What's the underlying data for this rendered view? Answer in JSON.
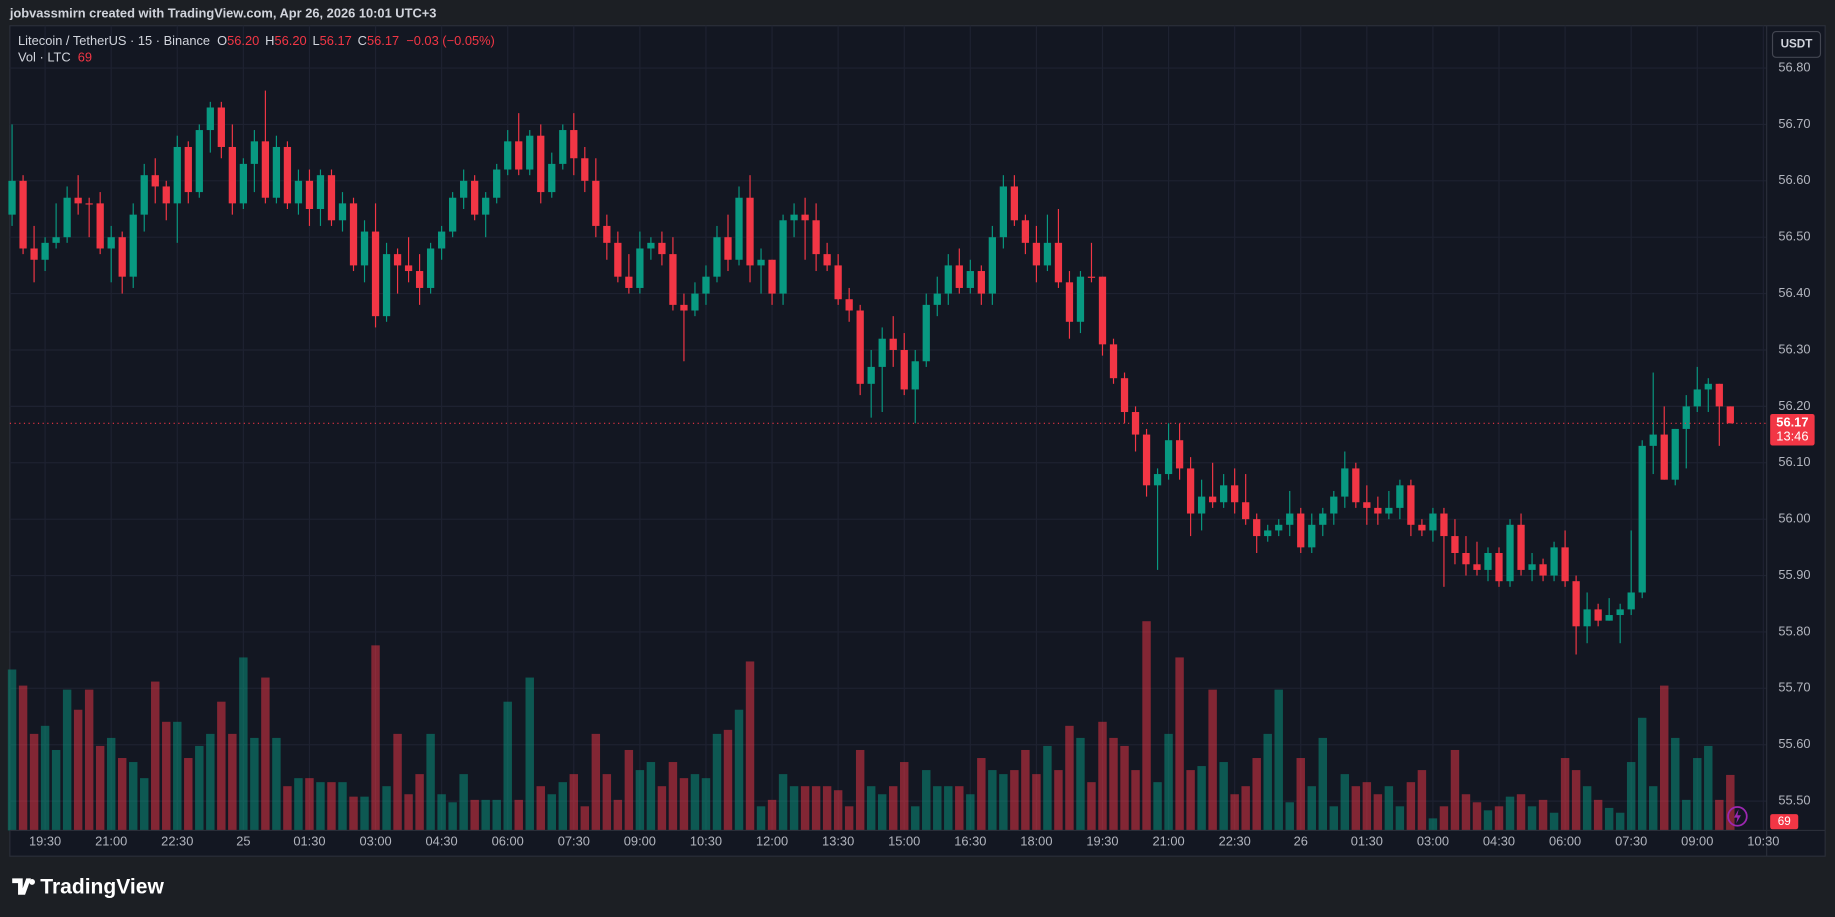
{
  "header": {
    "text": "jobvassmirn created with TradingView.com, Apr 26, 2026 10:01 UTC+3"
  },
  "footer": {
    "brand": "TradingView"
  },
  "chart_data": {
    "type": "candlestick",
    "legend": {
      "symbol": "Litecoin / TetherUS · 15 · Binance",
      "change": "−0.03 (−0.05%)",
      "volume": "Vol · LTC"
    },
    "legend_keys": [
      "O",
      "H",
      "L",
      "C"
    ],
    "legend_labels": [
      "56.20",
      "56.20",
      "56.17",
      "56.17"
    ],
    "countdown": "13:46",
    "currency": "USDT",
    "up_color": "#089981",
    "down_color": "#f23645",
    "grid": true,
    "xlim": [
      -0.2,
      159.3
    ],
    "ylim": [
      55.448,
      56.875
    ],
    "y2lim": [
      0,
      1000
    ],
    "yticks": [
      {
        "value": 55.5,
        "label": "55.50"
      },
      {
        "value": 55.6,
        "label": "55.60"
      },
      {
        "value": 55.7,
        "label": "55.70"
      },
      {
        "value": 55.8,
        "label": "55.80"
      },
      {
        "value": 55.9,
        "label": "55.90"
      },
      {
        "value": 56.0,
        "label": "56.00"
      },
      {
        "value": 56.1,
        "label": "56.10"
      },
      {
        "value": 56.2,
        "label": "56.20"
      },
      {
        "value": 56.3,
        "label": "56.30"
      },
      {
        "value": 56.4,
        "label": "56.40"
      },
      {
        "value": 56.5,
        "label": "56.50"
      },
      {
        "value": 56.6,
        "label": "56.60"
      },
      {
        "value": 56.7,
        "label": "56.70"
      },
      {
        "value": 56.8,
        "label": "56.80"
      }
    ],
    "xticks": [
      {
        "value": 3,
        "label": "19:30"
      },
      {
        "value": 9,
        "label": "21:00"
      },
      {
        "value": 15,
        "label": "22:30"
      },
      {
        "value": 21,
        "label": "25"
      },
      {
        "value": 27,
        "label": "01:30"
      },
      {
        "value": 33,
        "label": "03:00"
      },
      {
        "value": 39,
        "label": "04:30"
      },
      {
        "value": 45,
        "label": "06:00"
      },
      {
        "value": 51,
        "label": "07:30"
      },
      {
        "value": 57,
        "label": "09:00"
      },
      {
        "value": 63,
        "label": "10:30"
      },
      {
        "value": 69,
        "label": "12:00"
      },
      {
        "value": 75,
        "label": "13:30"
      },
      {
        "value": 81,
        "label": "15:00"
      },
      {
        "value": 87,
        "label": "16:30"
      },
      {
        "value": 93,
        "label": "18:00"
      },
      {
        "value": 99,
        "label": "19:30"
      },
      {
        "value": 105,
        "label": "21:00"
      },
      {
        "value": 111,
        "label": "22:30"
      },
      {
        "value": 117,
        "label": "26"
      },
      {
        "value": 123,
        "label": "01:30"
      },
      {
        "value": 129,
        "label": "03:00"
      },
      {
        "value": 135,
        "label": "04:30"
      },
      {
        "value": 141,
        "label": "06:00"
      },
      {
        "value": 147,
        "label": "07:30"
      },
      {
        "value": 153,
        "label": "09:00"
      },
      {
        "value": 159,
        "label": "10:30"
      }
    ],
    "candles": [
      [
        56.54,
        56.7,
        56.52,
        56.6,
        200
      ],
      [
        56.6,
        56.61,
        56.47,
        56.48,
        180
      ],
      [
        56.48,
        56.52,
        56.42,
        56.46,
        120
      ],
      [
        56.46,
        56.5,
        56.44,
        56.49,
        130
      ],
      [
        56.49,
        56.56,
        56.48,
        56.5,
        100
      ],
      [
        56.5,
        56.59,
        56.49,
        56.57,
        175
      ],
      [
        56.57,
        56.61,
        56.54,
        56.56,
        150
      ],
      [
        56.56,
        56.57,
        56.5,
        56.56,
        175
      ],
      [
        56.56,
        56.58,
        56.47,
        56.48,
        105
      ],
      [
        56.48,
        56.52,
        56.42,
        56.5,
        115
      ],
      [
        56.5,
        56.51,
        56.4,
        56.43,
        90
      ],
      [
        56.43,
        56.56,
        56.41,
        56.54,
        85
      ],
      [
        56.54,
        56.63,
        56.51,
        56.61,
        65
      ],
      [
        56.61,
        56.64,
        56.56,
        56.59,
        185
      ],
      [
        56.59,
        56.6,
        56.53,
        56.56,
        135
      ],
      [
        56.56,
        56.68,
        56.49,
        56.66,
        135
      ],
      [
        56.66,
        56.67,
        56.56,
        56.58,
        90
      ],
      [
        56.58,
        56.7,
        56.57,
        56.69,
        105
      ],
      [
        56.69,
        56.74,
        56.65,
        56.73,
        120
      ],
      [
        56.73,
        56.74,
        56.64,
        56.66,
        160
      ],
      [
        56.66,
        56.7,
        56.54,
        56.56,
        120
      ],
      [
        56.56,
        56.64,
        56.55,
        56.63,
        215
      ],
      [
        56.63,
        56.69,
        56.58,
        56.67,
        115
      ],
      [
        56.67,
        56.76,
        56.56,
        56.57,
        190
      ],
      [
        56.57,
        56.68,
        56.56,
        56.66,
        115
      ],
      [
        56.66,
        56.67,
        56.55,
        56.56,
        55
      ],
      [
        56.56,
        56.62,
        56.54,
        56.6,
        65
      ],
      [
        56.6,
        56.62,
        56.52,
        56.55,
        65
      ],
      [
        56.55,
        56.62,
        56.52,
        56.61,
        60
      ],
      [
        56.61,
        56.62,
        56.52,
        56.53,
        60
      ],
      [
        56.53,
        56.58,
        56.51,
        56.56,
        60
      ],
      [
        56.56,
        56.57,
        56.44,
        56.45,
        42
      ],
      [
        56.45,
        56.53,
        56.42,
        56.51,
        42
      ],
      [
        56.51,
        56.56,
        56.34,
        56.36,
        230
      ],
      [
        56.36,
        56.49,
        56.35,
        56.47,
        55
      ],
      [
        56.47,
        56.48,
        56.4,
        56.45,
        120
      ],
      [
        56.45,
        56.5,
        56.42,
        56.44,
        45
      ],
      [
        56.44,
        56.47,
        56.38,
        56.41,
        70
      ],
      [
        56.41,
        56.49,
        56.4,
        56.48,
        120
      ],
      [
        56.48,
        56.52,
        56.46,
        56.51,
        45
      ],
      [
        56.51,
        56.58,
        56.5,
        56.57,
        35
      ],
      [
        56.57,
        56.62,
        56.55,
        56.6,
        70
      ],
      [
        56.6,
        56.61,
        56.53,
        56.54,
        38
      ],
      [
        56.54,
        56.58,
        56.5,
        56.57,
        38
      ],
      [
        56.57,
        56.63,
        56.56,
        56.62,
        38
      ],
      [
        56.62,
        56.69,
        56.61,
        56.67,
        160
      ],
      [
        56.67,
        56.72,
        56.61,
        56.62,
        38
      ],
      [
        56.62,
        56.69,
        56.61,
        56.68,
        190
      ],
      [
        56.68,
        56.7,
        56.56,
        56.58,
        55
      ],
      [
        56.58,
        56.65,
        56.57,
        56.63,
        45
      ],
      [
        56.63,
        56.7,
        56.62,
        56.69,
        60
      ],
      [
        56.69,
        56.72,
        56.61,
        56.64,
        70
      ],
      [
        56.64,
        56.66,
        56.58,
        56.6,
        30
      ],
      [
        56.6,
        56.64,
        56.5,
        56.52,
        120
      ],
      [
        56.52,
        56.54,
        56.46,
        56.49,
        70
      ],
      [
        56.49,
        56.51,
        56.42,
        56.43,
        38
      ],
      [
        56.43,
        56.47,
        56.4,
        56.41,
        100
      ],
      [
        56.41,
        56.51,
        56.4,
        56.48,
        75
      ],
      [
        56.48,
        56.5,
        56.46,
        56.49,
        85
      ],
      [
        56.49,
        56.51,
        56.45,
        56.47,
        55
      ],
      [
        56.47,
        56.5,
        56.37,
        56.38,
        85
      ],
      [
        56.38,
        56.4,
        56.28,
        56.37,
        65
      ],
      [
        56.37,
        56.42,
        56.36,
        56.4,
        70
      ],
      [
        56.4,
        56.45,
        56.38,
        56.43,
        65
      ],
      [
        56.43,
        56.52,
        56.42,
        56.5,
        120
      ],
      [
        56.5,
        56.54,
        56.44,
        56.46,
        125
      ],
      [
        56.46,
        56.59,
        56.45,
        56.57,
        150
      ],
      [
        56.57,
        56.61,
        56.42,
        56.45,
        210
      ],
      [
        56.45,
        56.48,
        56.4,
        56.46,
        30
      ],
      [
        56.46,
        56.46,
        56.38,
        56.4,
        38
      ],
      [
        56.4,
        56.54,
        56.38,
        56.53,
        70
      ],
      [
        56.53,
        56.56,
        56.5,
        56.54,
        55
      ],
      [
        56.54,
        56.57,
        56.46,
        56.53,
        55
      ],
      [
        56.53,
        56.56,
        56.44,
        56.47,
        55
      ],
      [
        56.47,
        56.49,
        56.44,
        56.45,
        55
      ],
      [
        56.45,
        56.47,
        56.38,
        56.39,
        50
      ],
      [
        56.39,
        56.41,
        56.35,
        56.37,
        30
      ],
      [
        56.37,
        56.38,
        56.22,
        56.24,
        100
      ],
      [
        56.24,
        56.3,
        56.18,
        56.27,
        55
      ],
      [
        56.27,
        56.34,
        56.19,
        56.32,
        45
      ],
      [
        56.32,
        56.36,
        56.27,
        56.3,
        55
      ],
      [
        56.3,
        56.33,
        56.22,
        56.23,
        85
      ],
      [
        56.23,
        56.3,
        56.17,
        56.28,
        30
      ],
      [
        56.28,
        56.4,
        56.27,
        56.38,
        75
      ],
      [
        56.38,
        56.43,
        56.36,
        56.4,
        55
      ],
      [
        56.4,
        56.47,
        56.38,
        56.45,
        55
      ],
      [
        56.45,
        56.48,
        56.4,
        56.41,
        55
      ],
      [
        56.41,
        56.46,
        56.4,
        56.44,
        45
      ],
      [
        56.44,
        56.45,
        56.38,
        56.4,
        90
      ],
      [
        56.4,
        56.52,
        56.38,
        56.5,
        75
      ],
      [
        56.5,
        56.61,
        56.48,
        56.59,
        70
      ],
      [
        56.59,
        56.61,
        56.52,
        56.53,
        75
      ],
      [
        56.53,
        56.54,
        56.47,
        56.49,
        100
      ],
      [
        56.49,
        56.52,
        56.42,
        56.45,
        70
      ],
      [
        56.45,
        56.54,
        56.44,
        56.49,
        105
      ],
      [
        56.49,
        56.55,
        56.41,
        56.42,
        75
      ],
      [
        56.42,
        56.44,
        56.32,
        56.35,
        130
      ],
      [
        56.35,
        56.44,
        56.33,
        56.43,
        115
      ],
      [
        56.43,
        56.49,
        56.42,
        56.43,
        60
      ],
      [
        56.43,
        56.43,
        56.29,
        56.31,
        135
      ],
      [
        56.31,
        56.32,
        56.24,
        56.25,
        115
      ],
      [
        56.25,
        56.26,
        56.17,
        56.19,
        105
      ],
      [
        56.19,
        56.2,
        56.12,
        56.15,
        75
      ],
      [
        56.15,
        56.16,
        56.04,
        56.06,
        260
      ],
      [
        56.06,
        56.09,
        55.91,
        56.08,
        60
      ],
      [
        56.08,
        56.17,
        56.07,
        56.14,
        120
      ],
      [
        56.14,
        56.17,
        56.07,
        56.09,
        215
      ],
      [
        56.09,
        56.11,
        55.97,
        56.01,
        75
      ],
      [
        56.01,
        56.07,
        55.98,
        56.04,
        80
      ],
      [
        56.04,
        56.1,
        56.02,
        56.03,
        175
      ],
      [
        56.03,
        56.08,
        56.02,
        56.06,
        85
      ],
      [
        56.06,
        56.09,
        56.01,
        56.03,
        45
      ],
      [
        56.03,
        56.08,
        55.99,
        56.0,
        55
      ],
      [
        56.0,
        56.01,
        55.94,
        55.97,
        90
      ],
      [
        55.97,
        55.99,
        55.96,
        55.98,
        120
      ],
      [
        55.98,
        56.0,
        55.97,
        55.99,
        175
      ],
      [
        55.99,
        56.05,
        55.97,
        56.01,
        35
      ],
      [
        56.01,
        56.02,
        55.94,
        55.95,
        90
      ],
      [
        55.95,
        56.01,
        55.94,
        55.99,
        55
      ],
      [
        55.99,
        56.02,
        55.97,
        56.01,
        115
      ],
      [
        56.01,
        56.05,
        55.99,
        56.04,
        30
      ],
      [
        56.04,
        56.12,
        56.02,
        56.09,
        70
      ],
      [
        56.09,
        56.1,
        56.02,
        56.03,
        55
      ],
      [
        56.03,
        56.06,
        55.99,
        56.02,
        60
      ],
      [
        56.02,
        56.04,
        55.99,
        56.01,
        45
      ],
      [
        56.01,
        56.05,
        56.0,
        56.02,
        55
      ],
      [
        56.02,
        56.07,
        56.0,
        56.06,
        30
      ],
      [
        56.06,
        56.07,
        55.97,
        55.99,
        60
      ],
      [
        55.99,
        56.0,
        55.97,
        55.98,
        75
      ],
      [
        55.98,
        56.02,
        55.96,
        56.01,
        15
      ],
      [
        56.01,
        56.02,
        55.88,
        55.97,
        30
      ],
      [
        55.97,
        56.0,
        55.92,
        55.94,
        100
      ],
      [
        55.94,
        55.97,
        55.9,
        55.92,
        45
      ],
      [
        55.92,
        55.96,
        55.9,
        55.91,
        35
      ],
      [
        55.91,
        55.95,
        55.89,
        55.94,
        25
      ],
      [
        55.94,
        55.95,
        55.88,
        55.89,
        30
      ],
      [
        55.89,
        56.0,
        55.88,
        55.99,
        42
      ],
      [
        55.99,
        56.01,
        55.9,
        55.91,
        45
      ],
      [
        55.91,
        55.94,
        55.89,
        55.92,
        30
      ],
      [
        55.92,
        55.93,
        55.89,
        55.9,
        38
      ],
      [
        55.9,
        55.96,
        55.89,
        55.95,
        22
      ],
      [
        55.95,
        55.98,
        55.88,
        55.89,
        90
      ],
      [
        55.89,
        55.9,
        55.76,
        55.81,
        75
      ],
      [
        55.81,
        55.87,
        55.78,
        55.84,
        55
      ],
      [
        55.84,
        55.85,
        55.81,
        55.82,
        38
      ],
      [
        55.82,
        55.86,
        55.82,
        55.83,
        28
      ],
      [
        55.83,
        55.85,
        55.78,
        55.84,
        22
      ],
      [
        55.84,
        55.98,
        55.83,
        55.87,
        85
      ],
      [
        55.87,
        56.14,
        55.86,
        56.13,
        140
      ],
      [
        56.13,
        56.26,
        56.08,
        56.15,
        55
      ],
      [
        56.15,
        56.2,
        56.07,
        56.07,
        180
      ],
      [
        56.07,
        56.16,
        56.06,
        56.16,
        115
      ],
      [
        56.16,
        56.22,
        56.09,
        56.2,
        38
      ],
      [
        56.2,
        56.27,
        56.19,
        56.23,
        90
      ],
      [
        56.23,
        56.25,
        56.19,
        56.24,
        105
      ],
      [
        56.24,
        56.24,
        56.13,
        56.2,
        38
      ],
      [
        56.2,
        56.2,
        56.17,
        56.17,
        69
      ]
    ]
  }
}
